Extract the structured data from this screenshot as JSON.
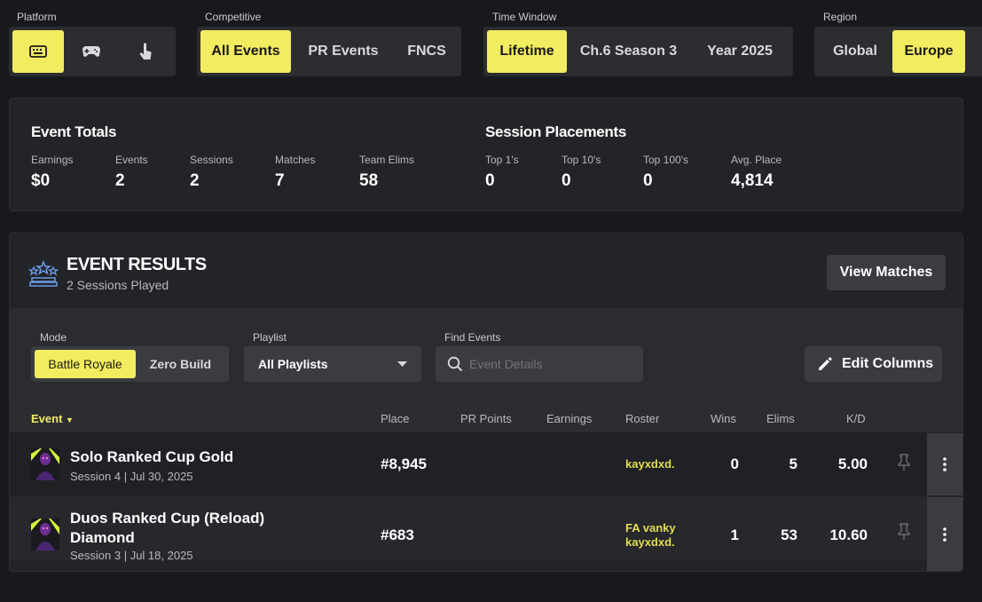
{
  "filters": {
    "platform": {
      "label": "Platform",
      "options": [
        "keyboard-icon",
        "gamepad-icon",
        "touch-icon"
      ],
      "selected": "keyboard-icon"
    },
    "competitive": {
      "label": "Competitive",
      "options": [
        "All Events",
        "PR Events",
        "FNCS"
      ],
      "selected": "All Events"
    },
    "time_window": {
      "label": "Time Window",
      "options": [
        "Lifetime",
        "Ch.6 Season 3",
        "Year 2025"
      ],
      "selected": "Lifetime"
    },
    "region": {
      "label": "Region",
      "options": [
        "Global",
        "Europe"
      ],
      "selected": "Europe"
    }
  },
  "event_totals": {
    "title": "Event Totals",
    "stats": [
      {
        "label": "Earnings",
        "value": "$0"
      },
      {
        "label": "Events",
        "value": "2"
      },
      {
        "label": "Sessions",
        "value": "2"
      },
      {
        "label": "Matches",
        "value": "7"
      },
      {
        "label": "Team Elims",
        "value": "58"
      }
    ]
  },
  "session_placements": {
    "title": "Session Placements",
    "stats": [
      {
        "label": "Top 1's",
        "value": "0"
      },
      {
        "label": "Top 10's",
        "value": "0"
      },
      {
        "label": "Top 100's",
        "value": "0"
      },
      {
        "label": "Avg. Place",
        "value": "4,814"
      }
    ]
  },
  "event_results": {
    "title": "EVENT RESULTS",
    "subtitle": "2 Sessions Played",
    "view_matches": "View Matches",
    "mode": {
      "label": "Mode",
      "options": [
        "Battle Royale",
        "Zero Build"
      ],
      "selected": "Battle Royale"
    },
    "playlist": {
      "label": "Playlist",
      "value": "All Playlists"
    },
    "find": {
      "label": "Find Events",
      "placeholder": "Event Details"
    },
    "edit_columns": "Edit Columns",
    "columns": {
      "event": "Event",
      "place": "Place",
      "pr_points": "PR Points",
      "earnings": "Earnings",
      "roster": "Roster",
      "wins": "Wins",
      "elims": "Elims",
      "kd": "K/D"
    },
    "rows": [
      {
        "name": "Solo Ranked Cup Gold",
        "session": "Session 4 | Jul 30, 2025",
        "place": "#8,945",
        "roster": [
          "kayxdxd."
        ],
        "wins": "0",
        "elims": "5",
        "kd": "5.00"
      },
      {
        "name": "Duos Ranked Cup (Reload) Diamond",
        "name_line1": "Duos Ranked Cup (Reload)",
        "name_line2": "Diamond",
        "session": "Session 3 | Jul 18, 2025",
        "place": "#683",
        "roster": [
          "FA vanky",
          "kayxdxd."
        ],
        "wins": "1",
        "elims": "53",
        "kd": "10.60"
      }
    ]
  },
  "colors": {
    "accent": "#f2ec60",
    "background": "#18191c",
    "card": "#222428"
  }
}
